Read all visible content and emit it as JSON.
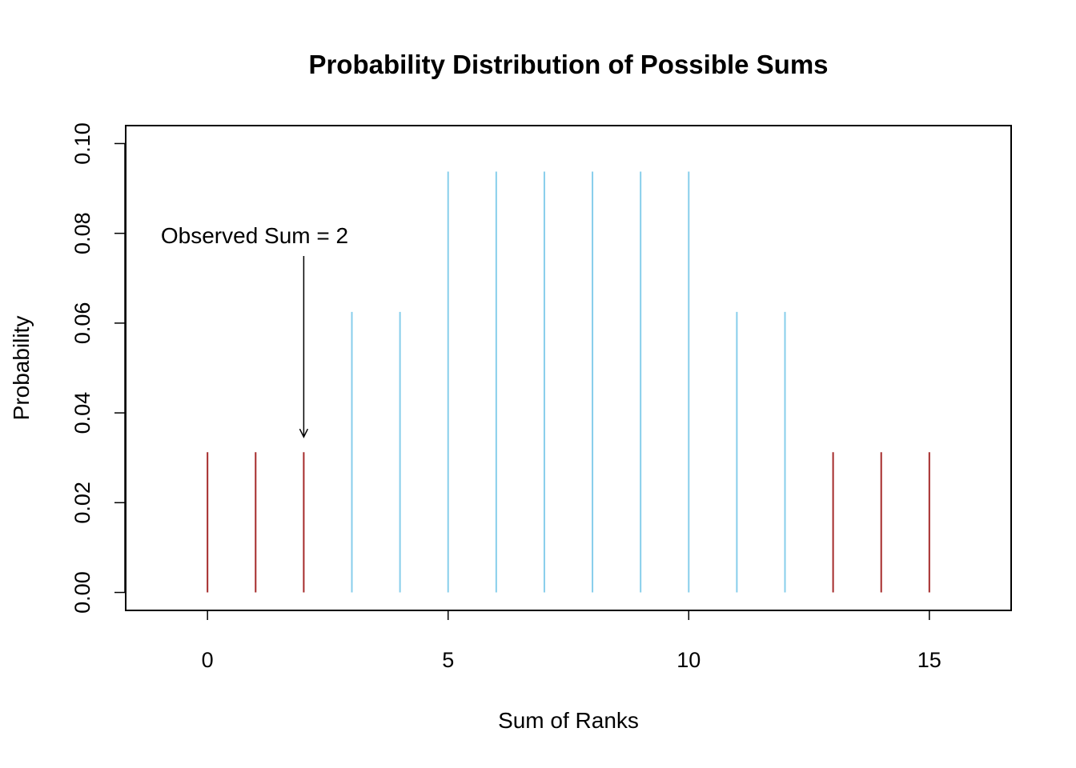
{
  "chart_data": {
    "type": "bar",
    "title": "Probability Distribution of Possible Sums",
    "xlabel": "Sum of Ranks",
    "ylabel": "Probability",
    "x": [
      0,
      1,
      2,
      3,
      4,
      5,
      6,
      7,
      8,
      9,
      10,
      11,
      12,
      13,
      14,
      15
    ],
    "values": [
      0.03125,
      0.03125,
      0.03125,
      0.0625,
      0.0625,
      0.09375,
      0.09375,
      0.09375,
      0.09375,
      0.09375,
      0.09375,
      0.0625,
      0.0625,
      0.03125,
      0.03125,
      0.03125
    ],
    "rejection_region": [
      0,
      1,
      2,
      13,
      14,
      15
    ],
    "colors": {
      "rejection": "#a52a2a",
      "other": "#87ceeb",
      "axis": "#000000"
    },
    "xlim": [
      -1.7,
      16.7
    ],
    "ylim": [
      -0.004,
      0.104
    ],
    "xticks": [
      0,
      5,
      10,
      15
    ],
    "xtick_labels": [
      "0",
      "5",
      "10",
      "15"
    ],
    "yticks": [
      0.0,
      0.02,
      0.04,
      0.06,
      0.08,
      0.1
    ],
    "ytick_labels": [
      "0.00",
      "0.02",
      "0.04",
      "0.06",
      "0.08",
      "0.10"
    ],
    "grid": false,
    "annotation": {
      "text": "Observed Sum = 2",
      "x": 2,
      "y": 0.035
    }
  }
}
